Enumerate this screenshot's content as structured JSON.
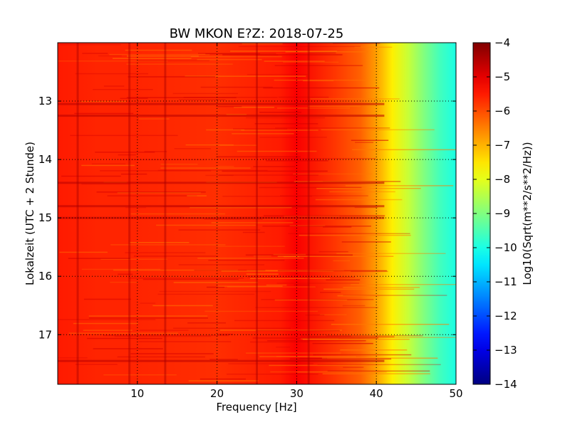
{
  "chart_data": {
    "type": "heatmap",
    "title": "BW MKON E?Z: 2018-07-25",
    "xlabel": "Frequency [Hz]",
    "ylabel": "Lokalzeit (UTC + 2 Stunde)",
    "xlim": [
      0,
      50
    ],
    "ylim": [
      17.85,
      12.0
    ],
    "x_ticks": [
      10,
      20,
      30,
      40,
      50
    ],
    "y_ticks": [
      13,
      14,
      15,
      16,
      17
    ],
    "grid": true,
    "colorbar": {
      "label": "Log10(Sqrt(m**2/s**2/Hz))",
      "range": [
        -14,
        -4
      ],
      "ticks": [
        -4,
        -5,
        -6,
        -7,
        -8,
        -9,
        -10,
        -11,
        -12,
        -13,
        -14
      ],
      "colormap": "jet"
    },
    "level_profile": {
      "frequency_hz": [
        0,
        5,
        10,
        20,
        28,
        30,
        35,
        38,
        40,
        42,
        44,
        46,
        48,
        50
      ],
      "log10_value": [
        -5.5,
        -5.6,
        -5.6,
        -5.7,
        -5.5,
        -5.2,
        -5.8,
        -6.2,
        -6.8,
        -7.6,
        -8.3,
        -9.0,
        -9.6,
        -10.0
      ]
    },
    "vertical_lines_hz": [
      2.5,
      9.0,
      13.5,
      25.0,
      31.5
    ],
    "horizontal_bands_hour": [
      13.05,
      13.25,
      14.4,
      14.8,
      15.0,
      17.45
    ]
  }
}
